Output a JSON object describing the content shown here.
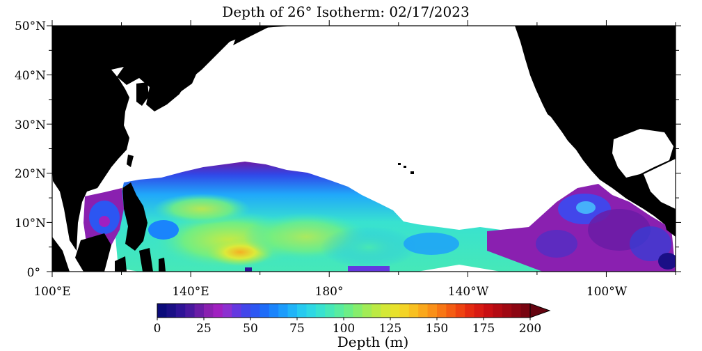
{
  "title": "Depth of 26° Isotherm: 02/17/2023",
  "lat_labels": [
    "50°N",
    "40°N",
    "30°N",
    "20°N",
    "10°N",
    "0°"
  ],
  "lon_labels": [
    "100°E",
    "140°E",
    "180°",
    "140°W",
    "100°W"
  ],
  "colorbar": {
    "ticks": [
      "0",
      "25",
      "50",
      "75",
      "100",
      "125",
      "150",
      "175",
      "200"
    ],
    "label": "Depth (m)",
    "range": [
      0,
      200
    ],
    "step": 5,
    "extend": "max",
    "colors": [
      "#0b0b7a",
      "#1a0f86",
      "#2e1396",
      "#48189e",
      "#6a1ca6",
      "#8a20b0",
      "#a020c0",
      "#8c30d0",
      "#6438e0",
      "#4246ea",
      "#2c56f2",
      "#1e6cf8",
      "#1a84fc",
      "#1c9cfc",
      "#20b4f8",
      "#26caf0",
      "#2ed8e4",
      "#38e2d0",
      "#46e8b8",
      "#58ecA0",
      "#6cee86",
      "#86ee6c",
      "#a2ec56",
      "#bcea44",
      "#d4e836",
      "#e8e22c",
      "#f4d426",
      "#f8c020",
      "#faa81c",
      "#fa9018",
      "#f87614",
      "#f45c12",
      "#ee4210",
      "#e42a10",
      "#d81a12",
      "#c80e12",
      "#b40a12",
      "#a00812",
      "#8c0612",
      "#780410"
    ],
    "over_color": "#640410"
  },
  "map": {
    "lon_range": [
      "100°E",
      "80°W"
    ],
    "lat_range": [
      "0°",
      "50°N"
    ],
    "land_color": "#000000",
    "no_data_color": "#ffffff"
  }
}
